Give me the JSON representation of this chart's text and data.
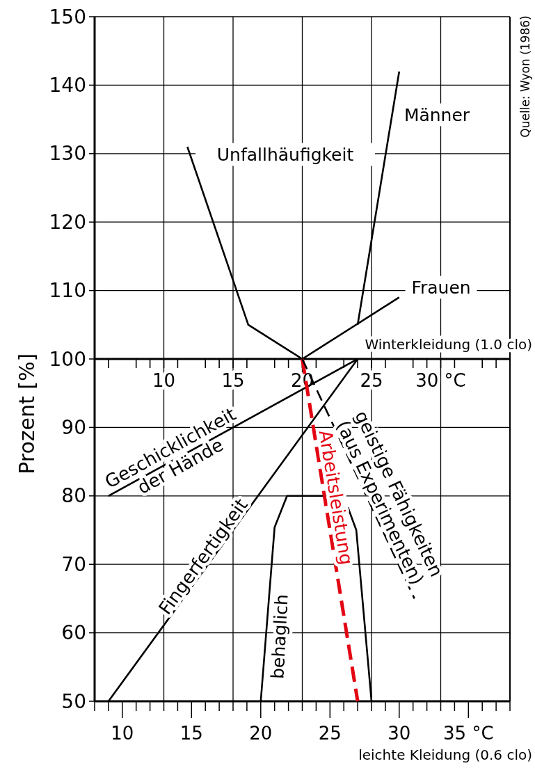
{
  "chart_data": {
    "type": "line",
    "ylabel": "Prozent [%]",
    "xlabel": "leichte Kleidung (0.6 clo)",
    "x2label": "Winterkleidung (1.0 clo)",
    "annotations": [
      "Quelle: Wyon (1986)"
    ],
    "xlim": [
      8,
      38
    ],
    "xticks": [
      {
        "value": 8,
        "label": null
      },
      {
        "value": 9,
        "label": null
      },
      10,
      {
        "value": 11,
        "label": null
      },
      {
        "value": 12,
        "label": null
      },
      {
        "value": 13,
        "label": null
      },
      {
        "value": 14,
        "label": null
      },
      15,
      {
        "value": 16,
        "label": null
      },
      {
        "value": 17,
        "label": null
      },
      {
        "value": 18,
        "label": null
      },
      {
        "value": 19,
        "label": null
      },
      20,
      {
        "value": 21,
        "label": null
      },
      {
        "value": 22,
        "label": null
      },
      {
        "value": 23,
        "label": null
      },
      {
        "value": 24,
        "label": null
      },
      25,
      {
        "value": 26,
        "label": null
      },
      {
        "value": 27,
        "label": null
      },
      {
        "value": 28,
        "label": null
      },
      {
        "value": 29,
        "label": null
      },
      30,
      {
        "value": 31,
        "label": null
      },
      {
        "value": 32,
        "label": null
      },
      {
        "value": 33,
        "label": null
      },
      {
        "value": 34,
        "label": null
      },
      {
        "value": 35,
        "label": "35 °C"
      },
      {
        "value": 36,
        "label": null
      },
      {
        "value": 37,
        "label": null
      },
      {
        "value": 38,
        "label": null
      }
    ],
    "x2lim": [
      5,
      35
    ],
    "x2ticks": [
      {
        "value": 5,
        "label": null
      },
      {
        "value": 6,
        "label": null
      },
      {
        "value": 8,
        "label": null
      },
      {
        "value": 9,
        "label": null
      },
      10,
      {
        "value": 11,
        "label": null
      },
      {
        "value": 13,
        "label": null
      },
      {
        "value": 14,
        "label": null
      },
      15,
      {
        "value": 16,
        "label": null
      },
      {
        "value": 18,
        "label": null
      },
      {
        "value": 19,
        "label": null
      },
      20,
      {
        "value": 21,
        "label": null
      },
      {
        "value": 23,
        "label": null
      },
      {
        "value": 24,
        "label": null
      },
      25,
      {
        "value": 26,
        "label": null
      },
      {
        "value": 28,
        "label": null
      },
      {
        "value": 29,
        "label": null
      },
      {
        "value": 30,
        "label": "30 °C"
      },
      {
        "value": 31,
        "label": null
      },
      {
        "value": 33,
        "label": null
      },
      {
        "value": 34,
        "label": null
      },
      {
        "value": 35,
        "label": null
      }
    ],
    "ylim": [
      50,
      150
    ],
    "yticks": [
      50,
      60,
      70,
      80,
      90,
      100,
      110,
      120,
      130,
      140,
      150
    ],
    "grid": true,
    "marker": "none",
    "series": [
      {
        "name": "Unfallhäufigkeit",
        "color": "#000000",
        "x": [
          14.7,
          19.1,
          23
        ],
        "values": [
          131,
          105,
          100
        ]
      },
      {
        "name": "Männer",
        "color": "#000000",
        "x": [
          27,
          30
        ],
        "values": [
          105,
          142
        ]
      },
      {
        "name": "Frauen",
        "color": "#000000",
        "x": [
          23,
          30
        ],
        "values": [
          100,
          109
        ]
      },
      {
        "name": "Geschicklichkeit\nder Hände",
        "color": "#000000",
        "x": [
          9,
          27
        ],
        "values": [
          80,
          100
        ]
      },
      {
        "name": "Fingerfertigkeit",
        "color": "#000000",
        "x": [
          9,
          27
        ],
        "values": [
          50,
          100
        ]
      },
      {
        "name": "Arbeitsleistung",
        "color": "#e30613",
        "line_style": "dashed",
        "x": [
          23,
          27
        ],
        "values": [
          100,
          50
        ]
      },
      {
        "name": "geistige Fähigkeiten\n(aus Experimenten)",
        "color": "#000000",
        "line_style": "dashed",
        "x": [
          23,
          31.1
        ],
        "values": [
          100,
          65
        ]
      },
      {
        "name": "behaglich",
        "color": "#000000",
        "x": [
          20,
          21,
          21.9,
          24.5,
          25.4,
          26.3,
          26.9,
          28
        ],
        "values": [
          50,
          75.4,
          80,
          80,
          null,
          78.3,
          75,
          50
        ]
      }
    ]
  }
}
